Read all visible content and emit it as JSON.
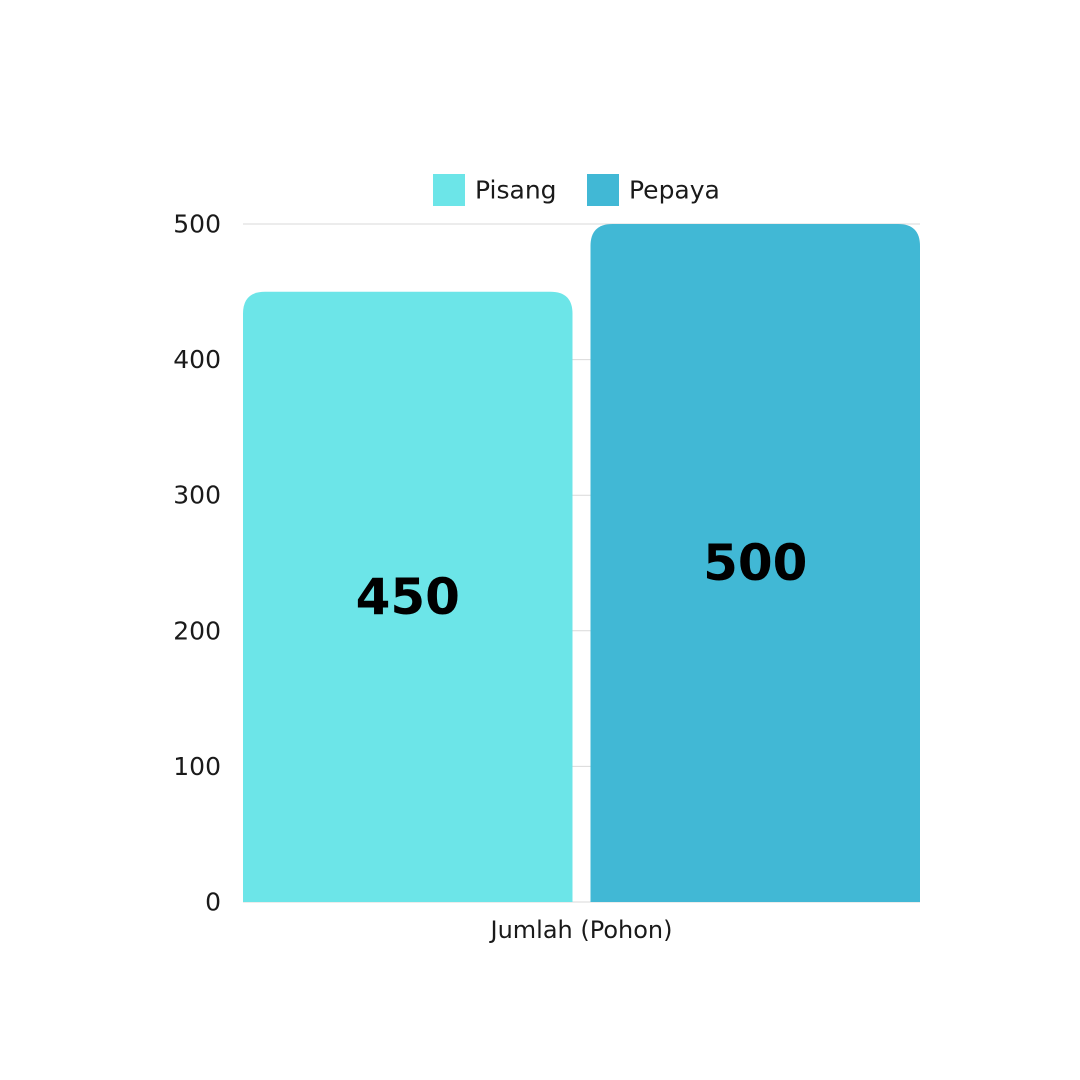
{
  "chart_data": {
    "type": "bar",
    "categories": [
      "Jumlah (Pohon)"
    ],
    "series": [
      {
        "name": "Pisang",
        "values": [
          450
        ],
        "color": "#6ce5e8"
      },
      {
        "name": "Pepaya",
        "values": [
          500
        ],
        "color": "#41b8d5"
      }
    ],
    "ylim": [
      0,
      500
    ],
    "yticks": [
      0,
      100,
      200,
      300,
      400,
      500
    ],
    "grid": true,
    "legend": "top-center",
    "data_labels": true,
    "grid_color": "#d9d9d9"
  }
}
